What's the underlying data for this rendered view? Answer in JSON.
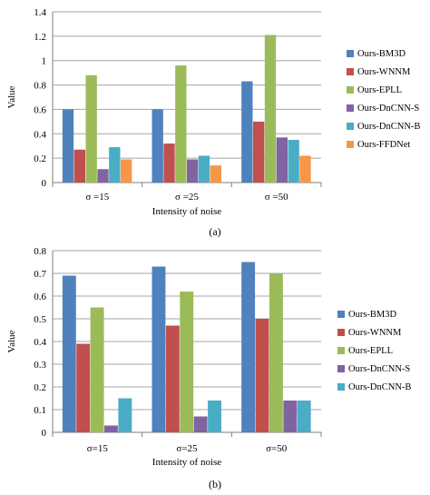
{
  "charts": [
    {
      "panel": "a",
      "caption": "(a)",
      "chart_data": {
        "type": "bar",
        "categories": [
          "σ =15",
          "σ =25",
          "σ =50"
        ],
        "series": [
          {
            "name": "Ours-BM3D",
            "color": "#4F81BD",
            "values": [
              0.6,
              0.6,
              0.83
            ]
          },
          {
            "name": "Ours-WNNM",
            "color": "#C0504D",
            "values": [
              0.27,
              0.32,
              0.5
            ]
          },
          {
            "name": "Ours-EPLL",
            "color": "#9BBB59",
            "values": [
              0.88,
              0.96,
              1.21
            ]
          },
          {
            "name": "Ours-DnCNN-S",
            "color": "#8064A2",
            "values": [
              0.11,
              0.19,
              0.37
            ]
          },
          {
            "name": "Ours-DnCNN-B",
            "color": "#4BACC6",
            "values": [
              0.29,
              0.22,
              0.35
            ]
          },
          {
            "name": "Ours-FFDNet",
            "color": "#F79646",
            "values": [
              0.19,
              0.14,
              0.22
            ]
          }
        ],
        "xlabel": "Intensity of noise",
        "ylabel": "Value",
        "ylim": [
          0,
          1.4
        ],
        "yticks": [
          "0",
          "0.2",
          "0.4",
          "0.6",
          "0.8",
          "1",
          "1.2",
          "1.4"
        ],
        "grid": true,
        "legend": "right"
      }
    },
    {
      "panel": "b",
      "caption": "(b)",
      "chart_data": {
        "type": "bar",
        "categories": [
          "σ=15",
          "σ=25",
          "σ=50"
        ],
        "series": [
          {
            "name": "Ours-BM3D",
            "color": "#4F81BD",
            "values": [
              0.69,
              0.73,
              0.75
            ]
          },
          {
            "name": "Ours-WNNM",
            "color": "#C0504D",
            "values": [
              0.39,
              0.47,
              0.5
            ]
          },
          {
            "name": "Ours-EPLL",
            "color": "#9BBB59",
            "values": [
              0.55,
              0.62,
              0.7
            ]
          },
          {
            "name": "Ours-DnCNN-S",
            "color": "#8064A2",
            "values": [
              0.03,
              0.07,
              0.14
            ]
          },
          {
            "name": "Ours-DnCNN-B",
            "color": "#4BACC6",
            "values": [
              0.15,
              0.14,
              0.14
            ]
          }
        ],
        "xlabel": "Intensity of noise",
        "ylabel": "Value",
        "ylim": [
          0,
          0.8
        ],
        "yticks": [
          "0",
          "0.1",
          "0.2",
          "0.3",
          "0.4",
          "0.5",
          "0.6",
          "0.7",
          "0.8"
        ],
        "grid": true,
        "legend": "right"
      }
    }
  ]
}
